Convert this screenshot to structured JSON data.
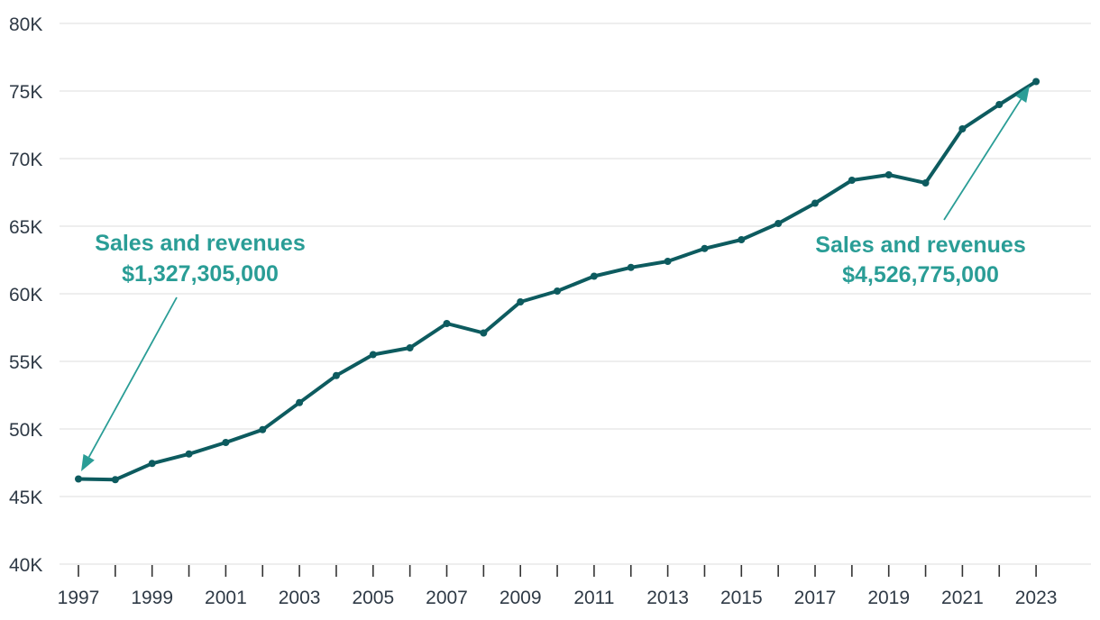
{
  "chart_data": {
    "type": "line",
    "title": "",
    "xlabel": "",
    "ylabel": "",
    "x": [
      1997,
      1998,
      1999,
      2000,
      2001,
      2002,
      2003,
      2004,
      2005,
      2006,
      2007,
      2008,
      2009,
      2010,
      2011,
      2012,
      2013,
      2014,
      2015,
      2016,
      2017,
      2018,
      2019,
      2020,
      2021,
      2022,
      2023
    ],
    "series": [
      {
        "name": "Sales and revenues",
        "values": [
          46300,
          46250,
          47450,
          48150,
          49000,
          49950,
          51950,
          53950,
          55500,
          56000,
          57800,
          57100,
          59400,
          60200,
          61300,
          61950,
          62400,
          63350,
          64000,
          65200,
          66700,
          68400,
          68800,
          68200,
          72200,
          74000,
          75700
        ]
      }
    ],
    "ylim": [
      40000,
      80000
    ],
    "yticks": [
      40000,
      45000,
      50000,
      55000,
      60000,
      65000,
      70000,
      75000,
      80000
    ],
    "ytick_labels": [
      "40K",
      "45K",
      "50K",
      "55K",
      "60K",
      "65K",
      "70K",
      "75K",
      "80K"
    ],
    "xtick_labels": [
      "1997",
      "1999",
      "2001",
      "2003",
      "2005",
      "2007",
      "2009",
      "2011",
      "2013",
      "2015",
      "2017",
      "2019",
      "2021",
      "2023"
    ],
    "grid": true,
    "legend": "none",
    "annotations": [
      {
        "line1": "Sales and revenues",
        "line2": "$1,327,305,000",
        "target_x": 1997
      },
      {
        "line1": "Sales and revenues",
        "line2": "$4,526,775,000",
        "target_x": 2023
      }
    ]
  },
  "colors": {
    "line": "#0d5b5f",
    "annotation": "#2a9d96",
    "grid": "#e3e3e3",
    "axis_text": "#2f3a46",
    "tick": "#333333"
  }
}
